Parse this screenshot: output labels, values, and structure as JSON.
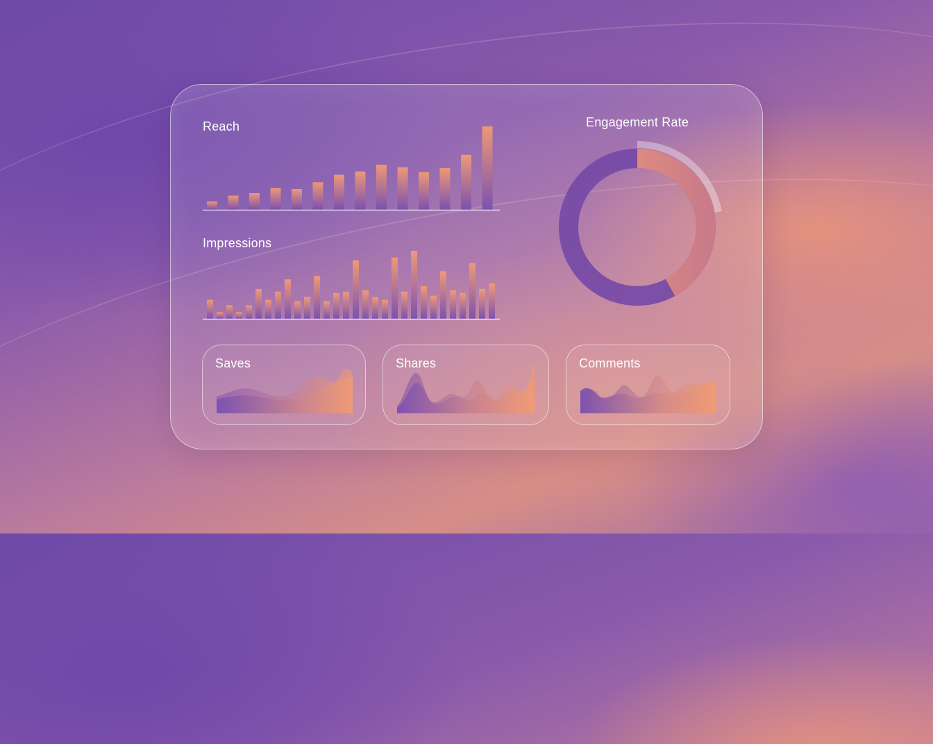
{
  "reach": {
    "title": "Reach",
    "values": [
      10,
      17,
      20,
      26,
      25,
      33,
      42,
      46,
      54,
      51,
      45,
      50,
      66,
      100
    ]
  },
  "impressions": {
    "title": "Impressions",
    "values": [
      28,
      10,
      20,
      10,
      20,
      44,
      28,
      40,
      58,
      26,
      32,
      63,
      26,
      38,
      40,
      86,
      42,
      32,
      28,
      90,
      40,
      100,
      48,
      34,
      70,
      42,
      38,
      82,
      44,
      52
    ]
  },
  "engagement": {
    "title": "Engagement Rate",
    "fraction": 0.42,
    "outer_arc_fraction": 0.22
  },
  "saves": {
    "title": "Saves"
  },
  "shares": {
    "title": "Shares"
  },
  "comments": {
    "title": "Comments"
  },
  "colors": {
    "bar_top": "#f29b73",
    "bar_bottom": "#7a4fb0",
    "ring_purple": "#7448a6",
    "ring_orange": "#ef9a72"
  }
}
